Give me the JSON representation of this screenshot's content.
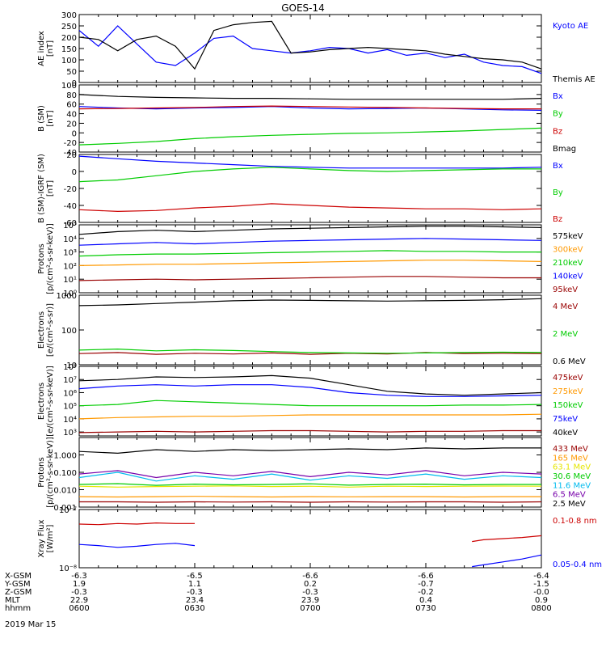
{
  "title": "GOES-14",
  "date_label": "2019 Mar 15",
  "colors": {
    "black": "#000000",
    "red": "#cc0000",
    "green": "#00cc00",
    "blue": "#0000ff",
    "orange": "#ff9900",
    "yellow": "#e6e600",
    "cyan": "#00bbee",
    "purple": "#7700aa",
    "maroon": "#990000"
  },
  "ephemeris": {
    "row_labels": [
      "X-GSM",
      "Y-GSM",
      "Z-GSM",
      "MLT",
      "hhmm"
    ],
    "columns": [
      {
        "x_gsm": "-6.3",
        "y_gsm": "1.9",
        "z_gsm": "-0.3",
        "mlt": "22.9",
        "hhmm": "0600"
      },
      {
        "x_gsm": "-6.5",
        "y_gsm": "1.1",
        "z_gsm": "-0.3",
        "mlt": "23.4",
        "hhmm": "0630"
      },
      {
        "x_gsm": "-6.6",
        "y_gsm": "0.2",
        "z_gsm": "-0.3",
        "mlt": "23.9",
        "hhmm": "0700"
      },
      {
        "x_gsm": "-6.6",
        "y_gsm": "-0.7",
        "z_gsm": "-0.2",
        "mlt": "0.4",
        "hhmm": "0730"
      },
      {
        "x_gsm": "-6.4",
        "y_gsm": "-1.5",
        "z_gsm": "-0.0",
        "mlt": "0.9",
        "hhmm": "0800"
      }
    ]
  },
  "chart_data": [
    {
      "type": "line",
      "ylabel": "AE index\n[nT]",
      "ylim": [
        0,
        300
      ],
      "y_ticks": [
        0,
        50,
        100,
        150,
        200,
        250,
        300
      ],
      "scale": "linear",
      "x": [
        0,
        5,
        10,
        15,
        20,
        25,
        30,
        35,
        40,
        45,
        50,
        55,
        60,
        65,
        70,
        75,
        80,
        85,
        90,
        95,
        100,
        105,
        110,
        115,
        120
      ],
      "series": [
        {
          "name": "Kyoto AE",
          "color": "blue",
          "values": [
            230,
            160,
            250,
            170,
            90,
            75,
            130,
            195,
            205,
            150,
            140,
            130,
            140,
            155,
            150,
            130,
            145,
            120,
            130,
            110,
            125,
            90,
            75,
            70,
            40
          ]
        },
        {
          "name": "Themis AE",
          "color": "black",
          "values": [
            200,
            190,
            140,
            190,
            205,
            160,
            60,
            230,
            255,
            265,
            270,
            130,
            135,
            145,
            150,
            155,
            150,
            145,
            140,
            125,
            115,
            105,
            100,
            90,
            60
          ]
        }
      ]
    },
    {
      "type": "line",
      "ylabel": "B (SM)\n[nT]",
      "ylim": [
        -40,
        100
      ],
      "y_ticks": [
        -40,
        -20,
        0,
        20,
        40,
        60,
        80,
        100
      ],
      "scale": "linear",
      "x": [
        0,
        10,
        20,
        30,
        40,
        50,
        60,
        70,
        80,
        90,
        100,
        110,
        120
      ],
      "series": [
        {
          "name": "Bx",
          "color": "blue",
          "values": [
            55,
            52,
            50,
            52,
            53,
            55,
            52,
            50,
            51,
            52,
            50,
            48,
            47
          ]
        },
        {
          "name": "By",
          "color": "green",
          "values": [
            -25,
            -22,
            -18,
            -12,
            -8,
            -5,
            -3,
            -1,
            0,
            2,
            4,
            7,
            10
          ]
        },
        {
          "name": "Bz",
          "color": "red",
          "values": [
            50,
            51,
            52,
            53,
            55,
            56,
            55,
            54,
            53,
            52,
            51,
            50,
            50
          ]
        },
        {
          "name": "Bmag",
          "color": "black",
          "values": [
            80,
            76,
            74,
            73,
            72,
            72,
            71,
            70,
            70,
            70,
            70,
            70,
            72
          ]
        }
      ]
    },
    {
      "type": "line",
      "ylabel": "B (SM)-IGRF (SM)\n[nT]",
      "ylim": [
        -60,
        20
      ],
      "y_ticks": [
        -60,
        -40,
        -20,
        0,
        20
      ],
      "scale": "linear",
      "x": [
        0,
        10,
        20,
        30,
        40,
        50,
        60,
        70,
        80,
        90,
        100,
        110,
        120
      ],
      "series": [
        {
          "name": "Bx",
          "color": "blue",
          "values": [
            18,
            15,
            12,
            10,
            8,
            6,
            5,
            4,
            4,
            4,
            4,
            4,
            5
          ]
        },
        {
          "name": "By",
          "color": "green",
          "values": [
            -12,
            -10,
            -5,
            0,
            3,
            5,
            3,
            1,
            0,
            1,
            2,
            3,
            3
          ]
        },
        {
          "name": "Bz",
          "color": "red",
          "values": [
            -45,
            -47,
            -46,
            -43,
            -41,
            -38,
            -40,
            -42,
            -43,
            -44,
            -44,
            -45,
            -44
          ]
        }
      ]
    },
    {
      "type": "line",
      "ylabel": "Protons\n[p/(cm²-s-sr-keV)]",
      "ylim": [
        0,
        5
      ],
      "scale": "log",
      "y_ticks": [
        0,
        1,
        2,
        3,
        4,
        5
      ],
      "tick_labels": [
        "10⁰",
        "10¹",
        "10²",
        "10³",
        "10⁴",
        "10⁵"
      ],
      "x": [
        0,
        10,
        20,
        30,
        40,
        50,
        60,
        70,
        80,
        90,
        100,
        110,
        120
      ],
      "series": [
        {
          "name": "575keV",
          "color": "black",
          "values": [
            4.3,
            4.5,
            4.6,
            4.5,
            4.6,
            4.7,
            4.75,
            4.8,
            4.85,
            4.9,
            4.9,
            4.85,
            4.8
          ]
        },
        {
          "name": "300keV",
          "color": "orange",
          "values": [
            2.0,
            2.05,
            2.1,
            2.1,
            2.15,
            2.2,
            2.25,
            2.3,
            2.35,
            2.4,
            2.4,
            2.35,
            2.3
          ]
        },
        {
          "name": "210keV",
          "color": "green",
          "values": [
            2.7,
            2.8,
            2.85,
            2.85,
            2.9,
            2.95,
            3.0,
            3.05,
            3.1,
            3.05,
            3.05,
            3.0,
            3.0
          ]
        },
        {
          "name": "140keV",
          "color": "blue",
          "values": [
            3.5,
            3.6,
            3.7,
            3.6,
            3.7,
            3.8,
            3.85,
            3.9,
            3.95,
            4.0,
            3.95,
            3.9,
            3.85
          ]
        },
        {
          "name": "95keV",
          "color": "maroon",
          "values": [
            0.9,
            0.95,
            1.0,
            0.95,
            1.0,
            1.05,
            1.1,
            1.15,
            1.2,
            1.2,
            1.15,
            1.1,
            1.1
          ]
        }
      ]
    },
    {
      "type": "line",
      "ylabel": "Electrons\n[e/(cm²-s-sr)]",
      "ylim": [
        1,
        3
      ],
      "scale": "log",
      "y_ticks": [
        1,
        2,
        3
      ],
      "tick_labels": [
        "10",
        "100",
        "1000"
      ],
      "x": [
        0,
        10,
        20,
        30,
        40,
        50,
        60,
        70,
        80,
        90,
        100,
        110,
        120
      ],
      "series": [
        {
          "name": "4 MeV",
          "color": "maroon",
          "values": [
            1.32,
            1.35,
            1.3,
            1.33,
            1.31,
            1.34,
            1.3,
            1.33,
            1.31,
            1.35,
            1.32,
            1.33,
            1.32
          ]
        },
        {
          "name": "2 MeV",
          "color": "green",
          "values": [
            1.42,
            1.45,
            1.4,
            1.43,
            1.41,
            1.38,
            1.35,
            1.34,
            1.33,
            1.34,
            1.35,
            1.36,
            1.35
          ]
        },
        {
          "name": "0.6 MeV",
          "color": "black",
          "values": [
            2.7,
            2.72,
            2.76,
            2.8,
            2.84,
            2.86,
            2.85,
            2.84,
            2.83,
            2.84,
            2.85,
            2.87,
            2.9
          ]
        }
      ]
    },
    {
      "type": "line",
      "ylabel": "Electrons\n[e/(cm²-s-sr-keV)]",
      "ylim": [
        2.7,
        8
      ],
      "scale": "log",
      "y_ticks": [
        3,
        4,
        5,
        6,
        7,
        8
      ],
      "tick_labels": [
        "10³",
        "10⁴",
        "10⁵",
        "10⁶",
        "10⁷",
        "10⁸"
      ],
      "x": [
        0,
        10,
        20,
        30,
        40,
        50,
        60,
        70,
        80,
        90,
        100,
        110,
        120
      ],
      "series": [
        {
          "name": "475keV",
          "color": "maroon",
          "values": [
            2.95,
            3.0,
            3.05,
            3.0,
            3.05,
            3.1,
            3.1,
            3.05,
            3.0,
            3.05,
            3.05,
            3.1,
            3.1
          ]
        },
        {
          "name": "275keV",
          "color": "orange",
          "values": [
            4.0,
            4.1,
            4.15,
            4.2,
            4.2,
            4.25,
            4.3,
            4.3,
            4.3,
            4.3,
            4.3,
            4.3,
            4.35
          ]
        },
        {
          "name": "150keV",
          "color": "green",
          "values": [
            5.0,
            5.1,
            5.4,
            5.3,
            5.2,
            5.1,
            5.0,
            5.0,
            5.0,
            5.0,
            5.05,
            5.05,
            5.1
          ]
        },
        {
          "name": "75keV",
          "color": "blue",
          "values": [
            6.3,
            6.5,
            6.6,
            6.5,
            6.6,
            6.6,
            6.4,
            6.0,
            5.8,
            5.7,
            5.7,
            5.75,
            5.8
          ]
        },
        {
          "name": "40keV",
          "color": "black",
          "values": [
            6.9,
            7.0,
            7.2,
            7.15,
            7.2,
            7.3,
            7.1,
            6.6,
            6.1,
            5.9,
            5.8,
            5.9,
            6.0
          ]
        }
      ]
    },
    {
      "type": "line",
      "ylabel": "Protons\n[p/(cm²-s-sr-keV)]",
      "ylim": [
        -3,
        1
      ],
      "scale": "log",
      "y_ticks": [
        -3,
        -2,
        -1,
        0
      ],
      "tick_labels": [
        "0.001",
        "0.010",
        "0.100",
        "1.000"
      ],
      "x": [
        0,
        10,
        20,
        30,
        40,
        50,
        60,
        70,
        80,
        90,
        100,
        110,
        120
      ],
      "series": [
        {
          "name": "433 MeV",
          "color": "maroon",
          "values": [
            -2.7,
            -2.7,
            -2.72,
            -2.7,
            -2.71,
            -2.7,
            -2.72,
            -2.7,
            -2.71,
            -2.7,
            -2.7,
            -2.72,
            -2.7
          ]
        },
        {
          "name": "165 MeV",
          "color": "orange",
          "values": [
            -2.4,
            -2.42,
            -2.4,
            -2.38,
            -2.4,
            -2.42,
            -2.4,
            -2.41,
            -2.4,
            -2.4,
            -2.42,
            -2.4,
            -2.4
          ]
        },
        {
          "name": "63.1 MeV",
          "color": "yellow",
          "values": [
            -1.8,
            -1.85,
            -1.82,
            -1.8,
            -1.78,
            -1.82,
            -1.8,
            -1.85,
            -1.8,
            -1.82,
            -1.8,
            -1.79,
            -1.8
          ]
        },
        {
          "name": "30.6 MeV",
          "color": "green",
          "values": [
            -1.7,
            -1.65,
            -1.75,
            -1.68,
            -1.72,
            -1.7,
            -1.66,
            -1.74,
            -1.7,
            -1.68,
            -1.72,
            -1.7,
            -1.7
          ]
        },
        {
          "name": "11.6 MeV",
          "color": "cyan",
          "values": [
            -1.3,
            -1.0,
            -1.5,
            -1.2,
            -1.4,
            -1.1,
            -1.45,
            -1.2,
            -1.35,
            -1.1,
            -1.4,
            -1.2,
            -1.3
          ]
        },
        {
          "name": "6.5 MeV",
          "color": "purple",
          "values": [
            -1.1,
            -0.9,
            -1.3,
            -1.0,
            -1.2,
            -0.95,
            -1.25,
            -1.0,
            -1.15,
            -0.9,
            -1.2,
            -1.0,
            -1.1
          ]
        },
        {
          "name": "2.5 MeV",
          "color": "black",
          "values": [
            0.2,
            0.1,
            0.3,
            0.2,
            0.3,
            0.25,
            0.3,
            0.35,
            0.3,
            0.4,
            0.35,
            0.4,
            0.4
          ]
        }
      ]
    },
    {
      "type": "line",
      "ylabel": "Xray Flux\n[W/m²]",
      "ylim": [
        -8,
        -7
      ],
      "scale": "log",
      "y_ticks": [
        -8,
        -7
      ],
      "tick_labels": [
        "10⁻⁸",
        "10⁻⁷"
      ],
      "series": [
        {
          "name": "0.1-0.8 nm",
          "color": "red",
          "segments": [
            {
              "x": [
                0,
                5,
                10,
                15,
                20,
                25,
                30
              ],
              "values": [
                -7.25,
                -7.26,
                -7.24,
                -7.25,
                -7.23,
                -7.24,
                -7.24
              ]
            },
            {
              "x": [
                102,
                105,
                110,
                115,
                120
              ],
              "values": [
                -7.55,
                -7.52,
                -7.5,
                -7.48,
                -7.45
              ]
            }
          ]
        },
        {
          "name": "0.05-0.4 nm",
          "color": "blue",
          "segments": [
            {
              "x": [
                0,
                5,
                10,
                15,
                20,
                25,
                30
              ],
              "values": [
                -7.6,
                -7.62,
                -7.65,
                -7.63,
                -7.6,
                -7.58,
                -7.62
              ]
            },
            {
              "x": [
                102,
                105,
                110,
                115,
                120
              ],
              "values": [
                -7.98,
                -7.95,
                -7.9,
                -7.85,
                -7.78
              ]
            }
          ]
        }
      ]
    }
  ]
}
